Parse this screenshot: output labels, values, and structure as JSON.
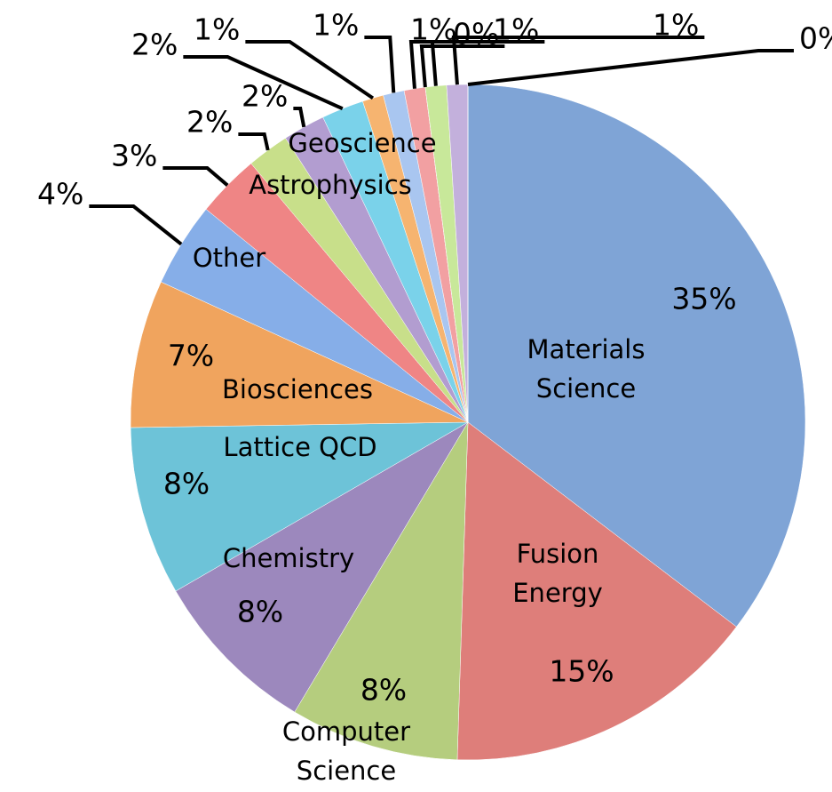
{
  "chart_data": {
    "type": "pie",
    "categories": [
      "Materials Science",
      "Fusion Energy",
      "Computer Science",
      "Chemistry",
      "Lattice QCD",
      "Biosciences",
      "Other",
      "Astrophysics",
      "Geoscience",
      null,
      null,
      null,
      null,
      null,
      null,
      null,
      null,
      null
    ],
    "values": [
      35,
      15,
      8,
      8,
      8,
      7,
      4,
      3,
      2,
      2,
      2,
      1,
      1,
      1,
      0,
      1,
      1,
      0
    ],
    "value_labels": [
      "35%",
      "15%",
      "8%",
      "8%",
      "8%",
      "7%",
      "4%",
      "3%",
      "2%",
      "2%",
      "2%",
      "1%",
      "1%",
      "1%",
      "0%",
      "1%",
      "1%",
      "0%"
    ],
    "colors": [
      "#7fa4d6",
      "#de7e7a",
      "#b5cd7e",
      "#9c88bd",
      "#6dc3d8",
      "#f0a45e",
      "#86aee8",
      "#ef8585",
      "#c8df8a",
      "#b29dd0",
      "#7ad2ea",
      "#f6b470",
      "#a9c6f0",
      "#f2a0a2",
      "#d6ea9e",
      "#c8e89a",
      "#c3b0dc",
      "#9ccfe6"
    ]
  }
}
